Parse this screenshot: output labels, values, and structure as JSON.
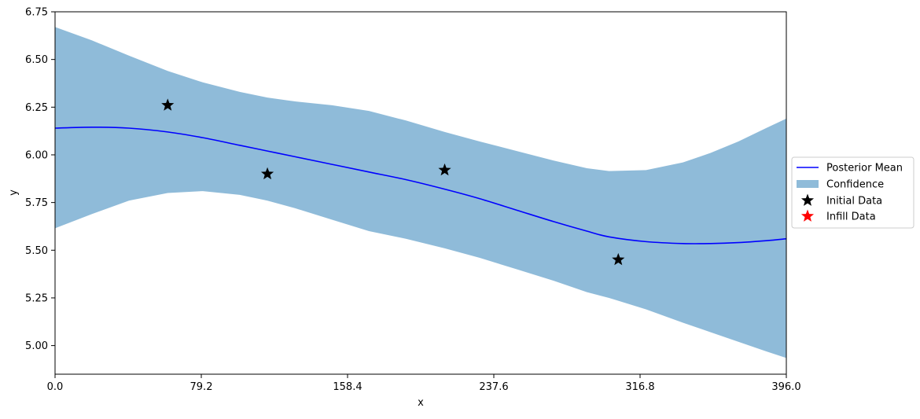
{
  "chart_data": {
    "type": "line",
    "title": "",
    "xlabel": "x",
    "ylabel": "y",
    "xlim": [
      0,
      396
    ],
    "ylim": [
      4.85,
      6.75
    ],
    "xticks": [
      "0.0",
      "79.2",
      "158.4",
      "237.6",
      "316.8",
      "396.0"
    ],
    "yticks": [
      "5.00",
      "5.25",
      "5.50",
      "5.75",
      "6.00",
      "6.25",
      "6.50",
      "6.75"
    ],
    "grid": false,
    "legend_placement": "center-right-outside",
    "series": [
      {
        "name": "Posterior Mean",
        "kind": "line",
        "color": "#0000ff",
        "x": [
          0,
          20,
          40,
          61,
          80,
          100,
          115,
          130,
          150,
          170,
          190,
          211,
          230,
          250,
          270,
          288,
          300,
          320,
          340,
          355,
          370,
          385,
          396
        ],
        "y": [
          6.14,
          6.145,
          6.14,
          6.12,
          6.09,
          6.05,
          6.02,
          5.99,
          5.95,
          5.91,
          5.87,
          5.82,
          5.77,
          5.71,
          5.65,
          5.6,
          5.57,
          5.545,
          5.535,
          5.535,
          5.54,
          5.55,
          5.56
        ]
      },
      {
        "name": "Confidence",
        "kind": "band",
        "color": "#1f77b4",
        "opacity": 0.5,
        "x": [
          0,
          20,
          40,
          61,
          80,
          100,
          115,
          130,
          150,
          170,
          190,
          211,
          230,
          250,
          270,
          288,
          300,
          320,
          340,
          355,
          370,
          385,
          396
        ],
        "upper": [
          6.67,
          6.6,
          6.52,
          6.44,
          6.38,
          6.33,
          6.3,
          6.28,
          6.26,
          6.23,
          6.18,
          6.12,
          6.07,
          6.02,
          5.97,
          5.93,
          5.915,
          5.92,
          5.96,
          6.01,
          6.07,
          6.14,
          6.19
        ],
        "lower": [
          5.615,
          5.69,
          5.76,
          5.8,
          5.81,
          5.79,
          5.76,
          5.72,
          5.66,
          5.6,
          5.56,
          5.51,
          5.46,
          5.4,
          5.34,
          5.28,
          5.25,
          5.19,
          5.12,
          5.07,
          5.02,
          4.97,
          4.935
        ]
      },
      {
        "name": "Initial Data",
        "kind": "scatter",
        "marker": "star",
        "color": "#000000",
        "x": [
          61,
          115,
          211,
          305
        ],
        "y": [
          6.26,
          5.9,
          5.92,
          5.45
        ]
      },
      {
        "name": "Infill Data",
        "kind": "scatter",
        "marker": "star",
        "color": "#ff0000",
        "x": [],
        "y": []
      }
    ]
  }
}
